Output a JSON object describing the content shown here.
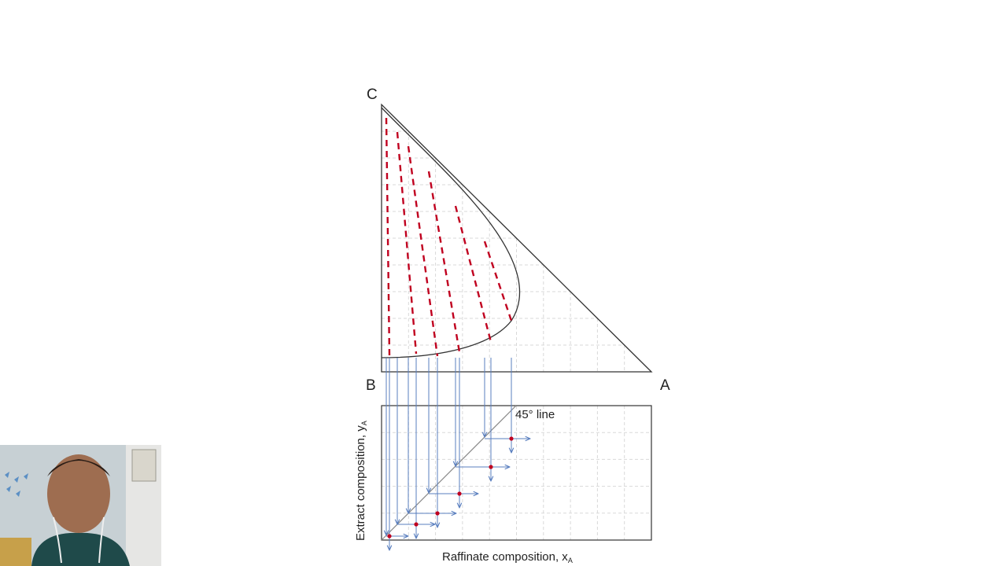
{
  "vertices": {
    "top": "C",
    "bottom_left": "B",
    "right": "A"
  },
  "reference_line_label": "45° line",
  "axes": {
    "y_label": "Extract composition, y",
    "y_sub": "A",
    "x_label": "Raffinate composition, x",
    "x_sub": "A"
  },
  "tie_line_count": 6,
  "colors": {
    "outline": "#333333",
    "grid": "#d9d9d9",
    "tie_line": "#c0001f",
    "projection": "#5a7fbf",
    "point": "#c0001f"
  }
}
